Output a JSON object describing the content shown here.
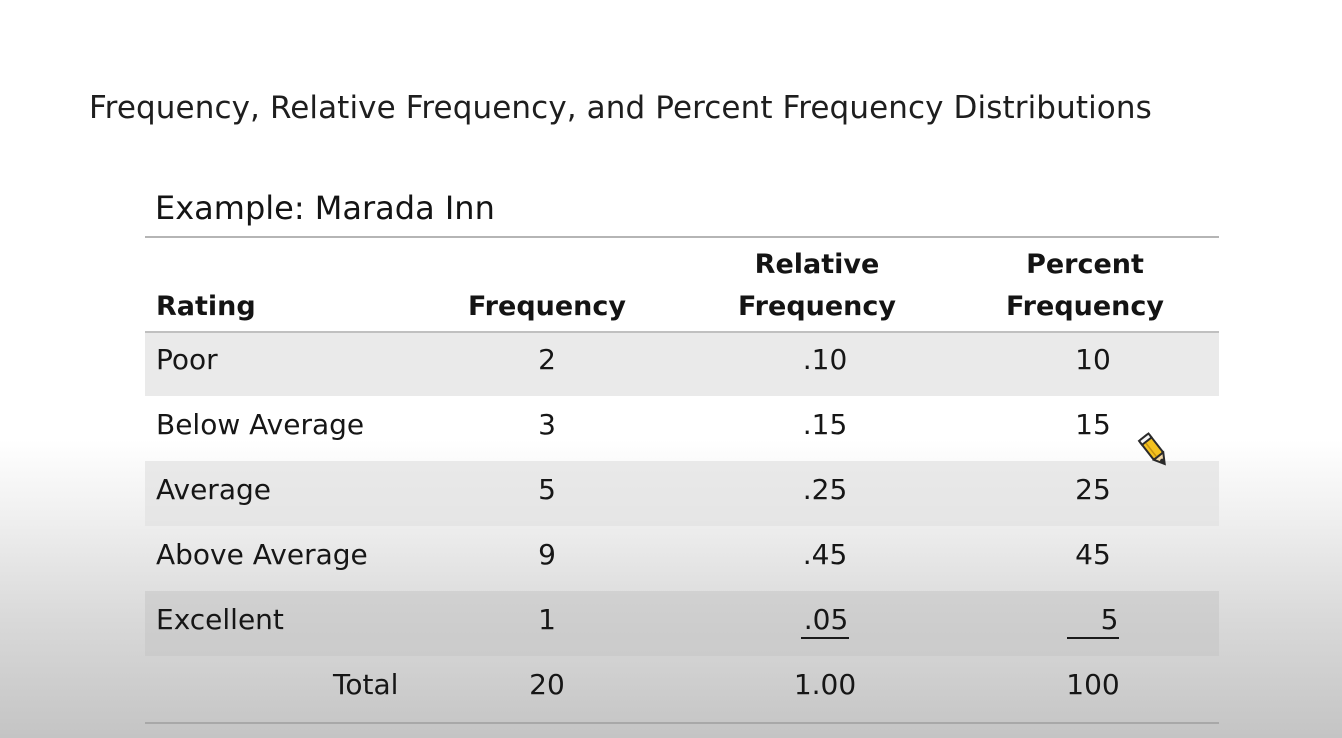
{
  "slide": {
    "title": "Frequency, Relative Frequency, and Percent Frequency Distributions",
    "subtitle": "Example: Marada Inn"
  },
  "table": {
    "headers": {
      "rating": "Rating",
      "frequency": "Frequency",
      "relative_line1": "Relative",
      "relative_line2": "Frequency",
      "percent_line1": "Percent",
      "percent_line2": "Frequency"
    },
    "rows": [
      {
        "rating": "Poor",
        "frequency": "2",
        "relative": ".10",
        "percent": "10"
      },
      {
        "rating": "Below Average",
        "frequency": "3",
        "relative": ".15",
        "percent": "15"
      },
      {
        "rating": "Average",
        "frequency": "5",
        "relative": ".25",
        "percent": "25"
      },
      {
        "rating": "Above Average",
        "frequency": "9",
        "relative": ".45",
        "percent": "45"
      },
      {
        "rating": "Excellent",
        "frequency": "1",
        "relative": ".05",
        "percent": "5"
      }
    ],
    "total": {
      "label": "Total",
      "frequency": "20",
      "relative": "1.00",
      "percent": "100"
    }
  },
  "cursor": {
    "icon": "pencil-cursor-icon"
  }
}
